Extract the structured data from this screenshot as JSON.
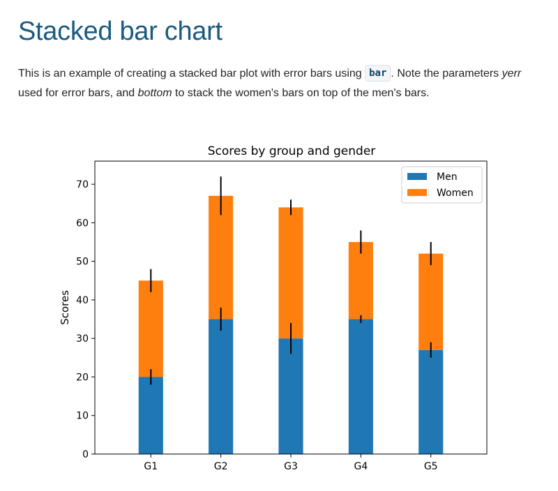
{
  "page": {
    "title": "Stacked bar chart",
    "intro_1": "This is an example of creating a stacked bar plot with error bars using ",
    "code": "bar",
    "intro_2": ". Note the parameters ",
    "param_yerr": "yerr",
    "intro_3": " used for error bars, and ",
    "param_bottom": "bottom",
    "intro_4": " to stack the women's bars on top of the men's bars."
  },
  "chart_data": {
    "type": "bar",
    "stacked": true,
    "title": "Scores by group and gender",
    "xlabel": "",
    "ylabel": "Scores",
    "categories": [
      "G1",
      "G2",
      "G3",
      "G4",
      "G5"
    ],
    "ylim": [
      0,
      76
    ],
    "yticks": [
      0,
      10,
      20,
      30,
      40,
      50,
      60,
      70
    ],
    "legend_position": "top-right",
    "series": [
      {
        "name": "Men",
        "color": "#1f77b4",
        "values": [
          20,
          35,
          30,
          35,
          27
        ],
        "errors": [
          2,
          3,
          4,
          1,
          2
        ]
      },
      {
        "name": "Women",
        "color": "#ff7f0e",
        "values": [
          25,
          32,
          34,
          20,
          25
        ],
        "errors": [
          3,
          5,
          2,
          3,
          3
        ]
      }
    ]
  }
}
